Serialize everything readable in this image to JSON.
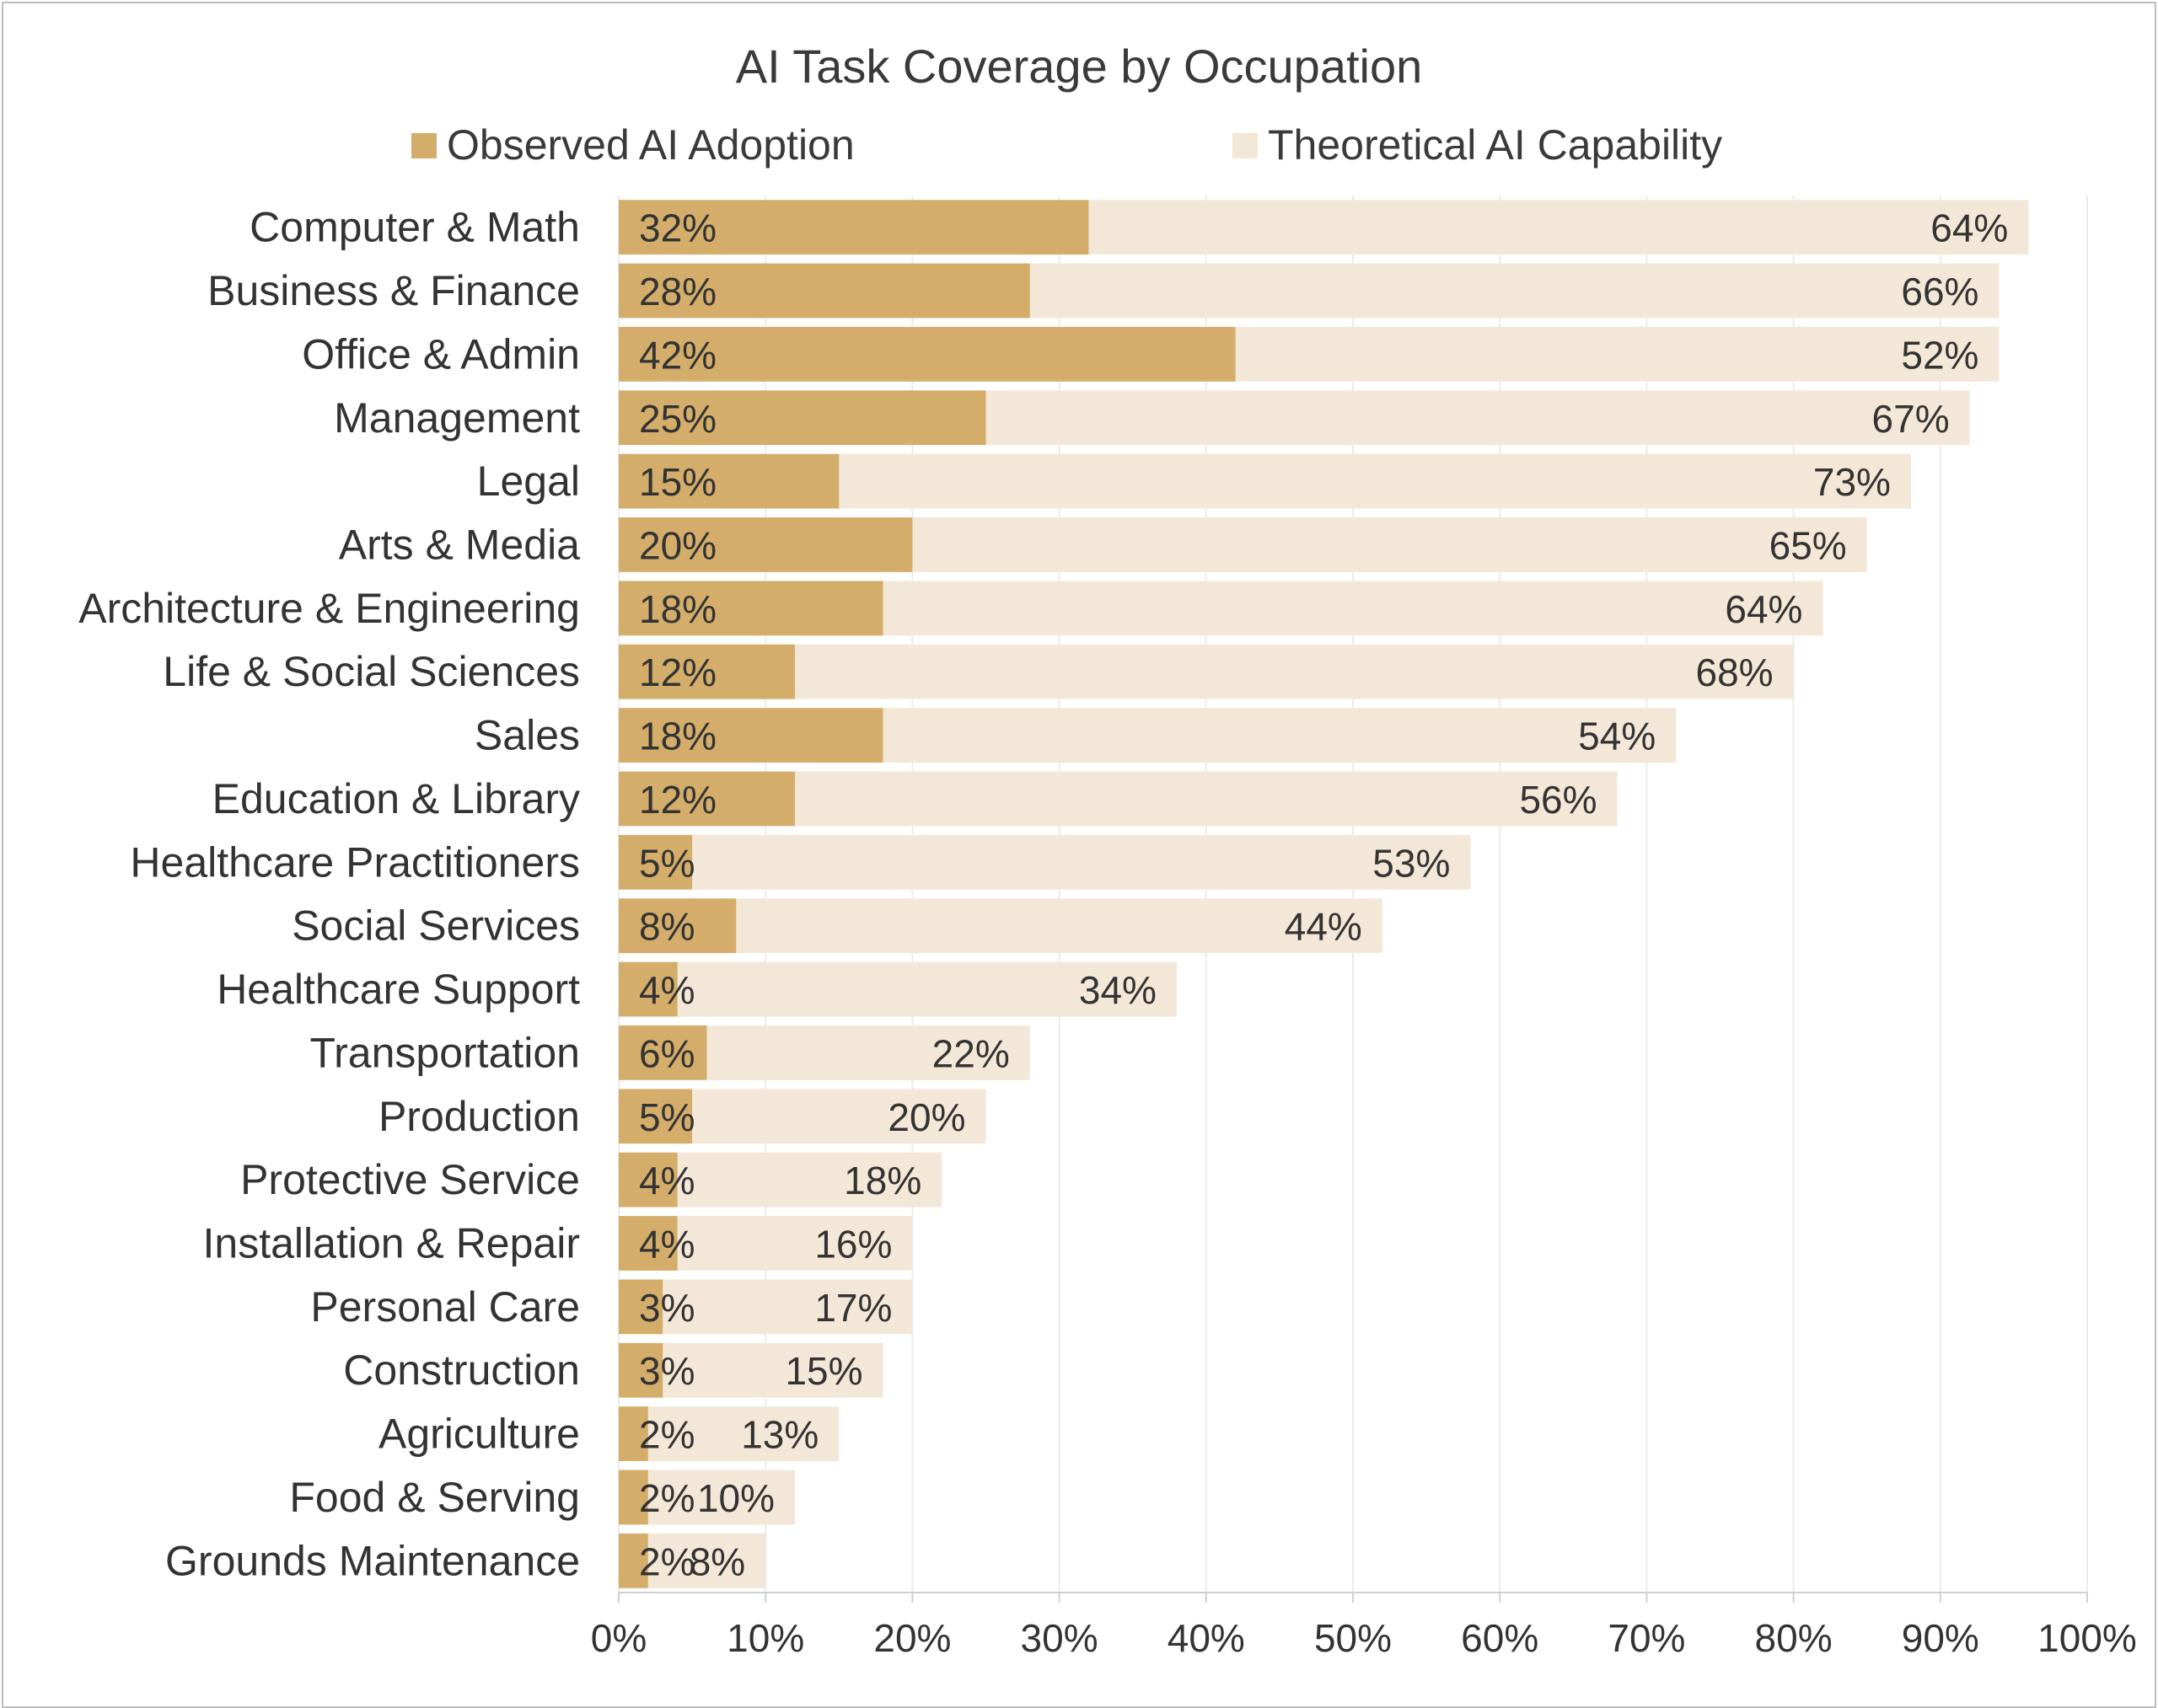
{
  "chart_data": {
    "type": "bar",
    "orientation": "horizontal",
    "title": "AI Task Coverage by Occupation",
    "xlabel": "",
    "ylabel": "",
    "xlim": [
      0,
      100
    ],
    "x_ticks": [
      "0%",
      "10%",
      "20%",
      "30%",
      "40%",
      "50%",
      "60%",
      "70%",
      "80%",
      "90%",
      "100%"
    ],
    "grid": true,
    "legend_position": "top",
    "categories": [
      "Computer & Math",
      "Business & Finance",
      "Office & Admin",
      "Management",
      "Legal",
      "Arts & Media",
      "Architecture & Engineering",
      "Life & Social Sciences",
      "Sales",
      "Education & Library",
      "Healthcare Practitioners",
      "Social Services",
      "Healthcare Support",
      "Transportation",
      "Production",
      "Protective Service",
      "Installation & Repair",
      "Personal Care",
      "Construction",
      "Agriculture",
      "Food & Serving",
      "Grounds Maintenance"
    ],
    "series": [
      {
        "name": "Observed AI Adoption",
        "color": "#d4ad6b",
        "values": [
          32,
          28,
          42,
          25,
          15,
          20,
          18,
          12,
          18,
          12,
          5,
          8,
          4,
          6,
          5,
          4,
          4,
          3,
          3,
          2,
          2,
          2
        ],
        "labels": [
          "32%",
          "28%",
          "42%",
          "25%",
          "15%",
          "20%",
          "18%",
          "12%",
          "18%",
          "12%",
          "5%",
          "8%",
          "4%",
          "6%",
          "5%",
          "4%",
          "4%",
          "3%",
          "3%",
          "2%",
          "2%",
          "2%"
        ]
      },
      {
        "name": "Theoretical AI Capability",
        "color": "#f3e7d7",
        "values": [
          64,
          66,
          52,
          67,
          73,
          65,
          64,
          68,
          54,
          56,
          53,
          44,
          34,
          22,
          20,
          18,
          16,
          17,
          15,
          13,
          10,
          8
        ],
        "labels": [
          "64%",
          "66%",
          "52%",
          "67%",
          "73%",
          "65%",
          "64%",
          "68%",
          "54%",
          "56%",
          "53%",
          "44%",
          "34%",
          "22%",
          "20%",
          "18%",
          "16%",
          "17%",
          "15%",
          "13%",
          "10%",
          "8%"
        ]
      }
    ],
    "stacked": true
  }
}
